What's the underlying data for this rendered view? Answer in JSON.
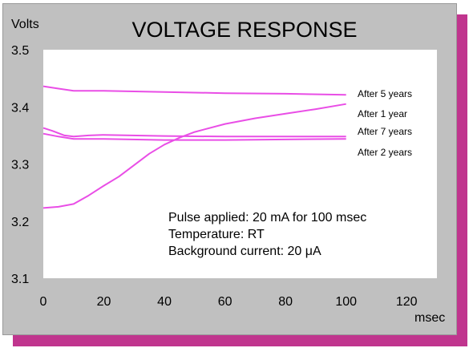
{
  "colors": {
    "shadow": "#c0358e",
    "panel": "#c0c0c0",
    "plot_bg": "#ffffff",
    "line": "#e94ee6"
  },
  "chart_data": {
    "type": "line",
    "title": "VOLTAGE RESPONSE",
    "ylabel": "Volts",
    "xlabel": "msec",
    "xlim": [
      0,
      130
    ],
    "ylim": [
      3.1,
      3.5
    ],
    "xticks": [
      "0",
      "20",
      "40",
      "60",
      "80",
      "100",
      "120"
    ],
    "yticks": [
      "3.1",
      "3.2",
      "3.3",
      "3.4",
      "3.5"
    ],
    "grid": false,
    "legend": "right",
    "series": [
      {
        "name": "After 5 years",
        "x": [
          0,
          5,
          10,
          20,
          40,
          60,
          80,
          100
        ],
        "y": [
          3.436,
          3.432,
          3.428,
          3.428,
          3.426,
          3.424,
          3.423,
          3.421
        ]
      },
      {
        "name": "After 1 year",
        "x": [
          0,
          5,
          10,
          15,
          20,
          25,
          30,
          35,
          40,
          45,
          50,
          60,
          70,
          80,
          90,
          100
        ],
        "y": [
          3.223,
          3.225,
          3.23,
          3.245,
          3.262,
          3.278,
          3.298,
          3.318,
          3.334,
          3.346,
          3.356,
          3.37,
          3.38,
          3.388,
          3.396,
          3.405
        ]
      },
      {
        "name": "After 7 years",
        "x": [
          0,
          3,
          7,
          10,
          15,
          20,
          40,
          60,
          80,
          100
        ],
        "y": [
          3.363,
          3.358,
          3.35,
          3.348,
          3.35,
          3.351,
          3.349,
          3.348,
          3.348,
          3.348
        ]
      },
      {
        "name": "After 2 years",
        "x": [
          0,
          5,
          10,
          20,
          40,
          60,
          80,
          100
        ],
        "y": [
          3.353,
          3.348,
          3.344,
          3.344,
          3.342,
          3.342,
          3.343,
          3.344
        ]
      }
    ],
    "annotations": [
      "Pulse applied: 20 mA for 100 msec",
      "Temperature: RT",
      "Background current: 20 μA"
    ]
  }
}
